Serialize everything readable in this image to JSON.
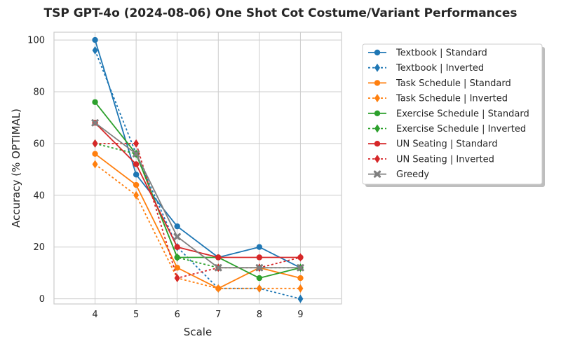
{
  "chart_data": {
    "type": "line",
    "title": "TSP GPT-4o (2024-08-06) One Shot Cot Costume/Variant Performances",
    "xlabel": "Scale",
    "ylabel": "Accuracy (% OPTIMAL)",
    "xlim": [
      3,
      10
    ],
    "ylim": [
      -2,
      103
    ],
    "x": [
      4,
      5,
      6,
      7,
      8,
      9
    ],
    "xticks": [
      4,
      5,
      6,
      7,
      8,
      9
    ],
    "yticks": [
      0,
      20,
      40,
      60,
      80,
      100
    ],
    "grid": true,
    "legend_position": "outside-right",
    "series": [
      {
        "name": "Textbook | Standard",
        "color": "#1f77b4",
        "linestyle": "solid",
        "marker": "circle",
        "values": [
          100,
          48,
          28,
          16,
          20,
          12
        ]
      },
      {
        "name": "Textbook | Inverted",
        "color": "#1f77b4",
        "linestyle": "dotted",
        "marker": "diamond",
        "values": [
          96,
          56,
          20,
          4,
          4,
          0
        ]
      },
      {
        "name": "Task Schedule | Standard",
        "color": "#ff7f0e",
        "linestyle": "solid",
        "marker": "circle",
        "values": [
          56,
          44,
          12,
          4,
          12,
          8
        ]
      },
      {
        "name": "Task Schedule | Inverted",
        "color": "#ff7f0e",
        "linestyle": "dotted",
        "marker": "diamond",
        "values": [
          52,
          40,
          8,
          4,
          4,
          4
        ]
      },
      {
        "name": "Exercise Schedule | Standard",
        "color": "#2ca02c",
        "linestyle": "solid",
        "marker": "circle",
        "values": [
          76,
          56,
          16,
          16,
          8,
          12
        ]
      },
      {
        "name": "Exercise Schedule | Inverted",
        "color": "#2ca02c",
        "linestyle": "dotted",
        "marker": "diamond",
        "values": [
          60,
          56,
          16,
          12,
          12,
          12
        ]
      },
      {
        "name": "UN Seating | Standard",
        "color": "#d62728",
        "linestyle": "solid",
        "marker": "circle",
        "values": [
          68,
          52,
          20,
          16,
          16,
          16
        ]
      },
      {
        "name": "UN Seating | Inverted",
        "color": "#d62728",
        "linestyle": "dotted",
        "marker": "diamond",
        "values": [
          60,
          60,
          8,
          12,
          12,
          16
        ]
      },
      {
        "name": "Greedy",
        "color": "#7f7f7f",
        "linestyle": "solid",
        "marker": "x",
        "values": [
          68,
          56,
          24,
          12,
          12,
          12
        ]
      }
    ]
  }
}
